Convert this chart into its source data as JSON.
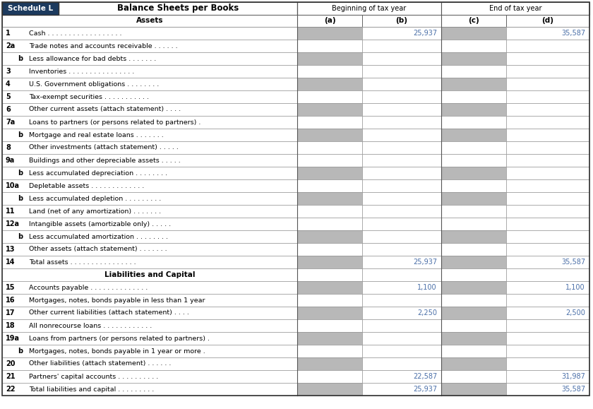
{
  "title_left": "Schedule L",
  "title_right": "Balance Sheets per Books",
  "col_headers": [
    "Beginning of tax year",
    "End of tax year"
  ],
  "sub_headers": [
    "(a)",
    "(b)",
    "(c)",
    "(d)"
  ],
  "section_assets": "Assets",
  "rows": [
    {
      "num": "1",
      "label": "Cash . . . . . . . . . . . . . . . . . .",
      "b": "25,937",
      "d": "35,587",
      "sha": true,
      "shc": true
    },
    {
      "num": "2a",
      "label": "Trade notes and accounts receivable . . . . . .",
      "b": "",
      "d": "",
      "sha": false,
      "shc": false
    },
    {
      "num": "b",
      "label": "Less allowance for bad debts . . . . . . .",
      "b": "",
      "d": "",
      "sha": true,
      "shc": true
    },
    {
      "num": "3",
      "label": "Inventories . . . . . . . . . . . . . . . .",
      "b": "",
      "d": "",
      "sha": false,
      "shc": false
    },
    {
      "num": "4",
      "label": "U.S. Government obligations . . . . . . . .",
      "b": "",
      "d": "",
      "sha": true,
      "shc": true
    },
    {
      "num": "5",
      "label": "Tax-exempt securities . . . . . . . . . . .",
      "b": "",
      "d": "",
      "sha": false,
      "shc": false
    },
    {
      "num": "6",
      "label": "Other current assets (attach statement) . . . .",
      "b": "",
      "d": "",
      "sha": true,
      "shc": true
    },
    {
      "num": "7a",
      "label": "Loans to partners (or persons related to partners) .",
      "b": "",
      "d": "",
      "sha": false,
      "shc": false
    },
    {
      "num": "b",
      "label": "Mortgage and real estate loans . . . . . . .",
      "b": "",
      "d": "",
      "sha": true,
      "shc": true
    },
    {
      "num": "8",
      "label": "Other investments (attach statement) . . . . .",
      "b": "",
      "d": "",
      "sha": false,
      "shc": false
    },
    {
      "num": "9a",
      "label": "Buildings and other depreciable assets . . . . .",
      "b": "",
      "d": "",
      "sha": false,
      "shc": false
    },
    {
      "num": "b",
      "label": "Less accumulated depreciation . . . . . . . .",
      "b": "",
      "d": "",
      "sha": true,
      "shc": true
    },
    {
      "num": "10a",
      "label": "Depletable assets . . . . . . . . . . . . .",
      "b": "",
      "d": "",
      "sha": false,
      "shc": false
    },
    {
      "num": "b",
      "label": "Less accumulated depletion . . . . . . . . .",
      "b": "",
      "d": "",
      "sha": true,
      "shc": true
    },
    {
      "num": "11",
      "label": "Land (net of any amortization) . . . . . . .",
      "b": "",
      "d": "",
      "sha": false,
      "shc": false
    },
    {
      "num": "12a",
      "label": "Intangible assets (amortizable only) . . . . .",
      "b": "",
      "d": "",
      "sha": false,
      "shc": false
    },
    {
      "num": "b",
      "label": "Less accumulated amortization . . . . . . . .",
      "b": "",
      "d": "",
      "sha": true,
      "shc": true
    },
    {
      "num": "13",
      "label": "Other assets (attach statement) . . . . . . .",
      "b": "",
      "d": "",
      "sha": false,
      "shc": false
    },
    {
      "num": "14",
      "label": "Total assets . . . . . . . . . . . . . . . .",
      "b": "25,937",
      "d": "35,587",
      "sha": true,
      "shc": true
    },
    {
      "num": "",
      "label": "Liabilities and Capital",
      "b": "",
      "d": "",
      "sha": false,
      "shc": false,
      "section": true
    },
    {
      "num": "15",
      "label": "Accounts payable . . . . . . . . . . . . . .",
      "b": "1,100",
      "d": "1,100",
      "sha": true,
      "shc": true
    },
    {
      "num": "16",
      "label": "Mortgages, notes, bonds payable in less than 1 year",
      "b": "",
      "d": "",
      "sha": false,
      "shc": false
    },
    {
      "num": "17",
      "label": "Other current liabilities (attach statement) . . . .",
      "b": "2,250",
      "d": "2,500",
      "sha": true,
      "shc": true
    },
    {
      "num": "18",
      "label": "All nonrecourse loans . . . . . . . . . . . .",
      "b": "",
      "d": "",
      "sha": false,
      "shc": false
    },
    {
      "num": "19a",
      "label": "Loans from partners (or persons related to partners) .",
      "b": "",
      "d": "",
      "sha": true,
      "shc": true
    },
    {
      "num": "b",
      "label": "Mortgages, notes, bonds payable in 1 year or more .",
      "b": "",
      "d": "",
      "sha": false,
      "shc": false
    },
    {
      "num": "20",
      "label": "Other liabilities (attach statement) . . . . . .",
      "b": "",
      "d": "",
      "sha": true,
      "shc": true
    },
    {
      "num": "21",
      "label": "Partners' capital accounts . . . . . . . . . .",
      "b": "22,587",
      "d": "31,987",
      "sha": false,
      "shc": false
    },
    {
      "num": "22",
      "label": "Total liabilities and capital . . . . . . . . .",
      "b": "25,937",
      "d": "35,587",
      "sha": true,
      "shc": true
    }
  ],
  "shaded_col": "#b8b8b8",
  "white_col": "#ffffff",
  "light_blue": "#e8eef8",
  "header_dark": "#1c3a5e",
  "number_blue": "#4a6fa8",
  "grid_color": "#999999",
  "border_color": "#555555"
}
